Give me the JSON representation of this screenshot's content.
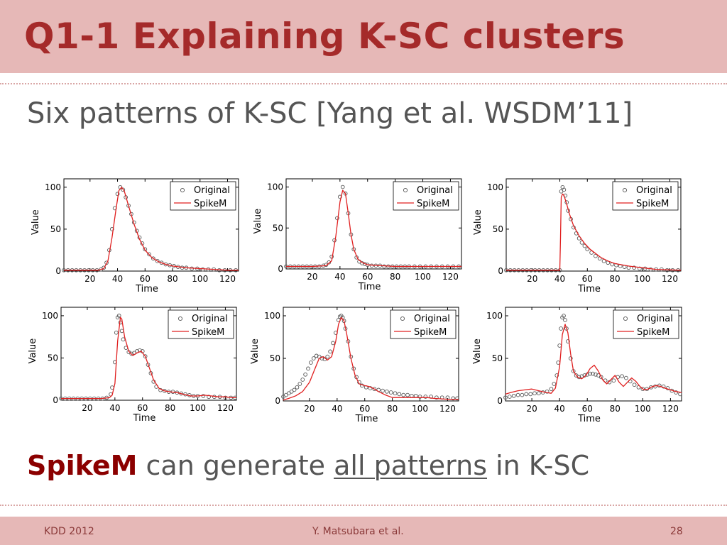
{
  "slide": {
    "title": "Q1-1 Explaining K-SC clusters",
    "subtitle": "Six patterns of K-SC [Yang et al. WSDM’11]",
    "bottom": {
      "highlight": "SpikeM",
      "middle": " can generate ",
      "underlined": "all patterns",
      "end": " in K-SC"
    },
    "footer": {
      "left": "KDD 2012",
      "center": "Y. Matsubara et al.",
      "right": "28"
    },
    "colors": {
      "title_bar": "#e6b8b7",
      "title_text": "#a52a2a",
      "highlight": "#8b0000",
      "model_line": "#e02020",
      "markers": "#555555"
    }
  },
  "chart_data": [
    {
      "type": "scatter",
      "xlabel": "Time",
      "ylabel": "Value",
      "xlim": [
        1,
        128
      ],
      "ylim": [
        0,
        110
      ],
      "xticks": [
        20,
        40,
        60,
        80,
        100,
        120
      ],
      "yticks": [
        0,
        50,
        100
      ],
      "legend": [
        "Original",
        "SpikeM"
      ],
      "legend_position": "top-right",
      "series": [
        {
          "name": "Original",
          "marker": "circle",
          "x": [
            1,
            4,
            7,
            10,
            13,
            16,
            19,
            22,
            25,
            28,
            30,
            32,
            34,
            36,
            38,
            40,
            42,
            44,
            46,
            48,
            50,
            52,
            54,
            56,
            58,
            60,
            63,
            66,
            69,
            72,
            75,
            78,
            81,
            84,
            87,
            90,
            94,
            98,
            102,
            106,
            110,
            114,
            118,
            122,
            126
          ],
          "y": [
            1,
            1,
            1,
            1,
            1,
            1,
            1,
            1,
            1,
            2,
            4,
            10,
            25,
            50,
            75,
            92,
            100,
            97,
            88,
            78,
            68,
            58,
            48,
            40,
            33,
            26,
            20,
            15,
            12,
            10,
            8,
            7,
            6,
            5,
            4,
            4,
            3,
            3,
            2,
            2,
            2,
            1,
            1,
            1,
            1
          ]
        },
        {
          "name": "SpikeM",
          "marker": "line",
          "x": [
            1,
            10,
            20,
            26,
            30,
            33,
            36,
            39,
            41,
            43,
            45,
            48,
            52,
            56,
            60,
            65,
            70,
            75,
            80,
            90,
            100,
            110,
            120,
            128
          ],
          "y": [
            1,
            1,
            1,
            1,
            3,
            12,
            40,
            75,
            96,
            100,
            95,
            78,
            56,
            38,
            25,
            16,
            11,
            8,
            6,
            4,
            3,
            2,
            1,
            1
          ]
        }
      ]
    },
    {
      "type": "scatter",
      "xlabel": "Time",
      "ylabel": "Value",
      "xlim": [
        1,
        128
      ],
      "ylim": [
        0,
        110
      ],
      "xticks": [
        20,
        40,
        60,
        80,
        100,
        120
      ],
      "yticks": [
        0,
        50,
        100
      ],
      "legend": [
        "Original",
        "SpikeM"
      ],
      "legend_position": "top-right",
      "series": [
        {
          "name": "Original",
          "marker": "circle",
          "x": [
            1,
            4,
            7,
            10,
            13,
            16,
            19,
            22,
            25,
            28,
            30,
            32,
            34,
            36,
            38,
            40,
            42,
            44,
            46,
            48,
            50,
            52,
            54,
            56,
            58,
            60,
            63,
            66,
            69,
            72,
            75,
            78,
            81,
            84,
            87,
            90,
            94,
            98,
            102,
            106,
            110,
            114,
            118,
            122,
            126
          ],
          "y": [
            3,
            3,
            3,
            3,
            3,
            3,
            3,
            3,
            3,
            4,
            5,
            8,
            15,
            35,
            62,
            88,
            100,
            92,
            68,
            42,
            24,
            14,
            9,
            7,
            6,
            5,
            4,
            4,
            4,
            3,
            3,
            3,
            3,
            3,
            3,
            3,
            3,
            3,
            3,
            3,
            3,
            3,
            3,
            3,
            3
          ]
        },
        {
          "name": "SpikeM",
          "marker": "line",
          "x": [
            1,
            10,
            20,
            30,
            34,
            37,
            40,
            42,
            44,
            46,
            48,
            50,
            53,
            56,
            60,
            70,
            80,
            100,
            128
          ],
          "y": [
            3,
            3,
            3,
            4,
            10,
            40,
            82,
            96,
            92,
            68,
            42,
            24,
            12,
            8,
            5,
            4,
            3,
            3,
            3
          ]
        }
      ]
    },
    {
      "type": "scatter",
      "xlabel": "Time",
      "ylabel": "Value",
      "xlim": [
        1,
        128
      ],
      "ylim": [
        0,
        110
      ],
      "xticks": [
        20,
        40,
        60,
        80,
        100,
        120
      ],
      "yticks": [
        0,
        50,
        100
      ],
      "legend": [
        "Original",
        "SpikeM"
      ],
      "legend_position": "top-right",
      "series": [
        {
          "name": "Original",
          "marker": "circle",
          "x": [
            1,
            4,
            7,
            10,
            13,
            16,
            19,
            22,
            25,
            28,
            31,
            34,
            37,
            40,
            41,
            42,
            43,
            44,
            45,
            46,
            48,
            50,
            52,
            54,
            56,
            58,
            60,
            63,
            66,
            69,
            72,
            75,
            78,
            81,
            84,
            87,
            90,
            94,
            98,
            102,
            106,
            110,
            114,
            118,
            122,
            126
          ],
          "y": [
            1,
            1,
            1,
            1,
            1,
            1,
            1,
            1,
            1,
            1,
            1,
            1,
            1,
            1,
            95,
            100,
            97,
            90,
            82,
            72,
            62,
            52,
            45,
            39,
            34,
            30,
            26,
            22,
            18,
            15,
            12,
            10,
            8,
            7,
            6,
            5,
            4,
            4,
            3,
            3,
            2,
            2,
            2,
            1,
            1,
            1
          ]
        },
        {
          "name": "SpikeM",
          "marker": "line",
          "x": [
            1,
            20,
            40,
            40.5,
            41,
            42,
            43,
            45,
            47,
            50,
            54,
            58,
            62,
            66,
            70,
            75,
            80,
            90,
            100,
            110,
            128
          ],
          "y": [
            1,
            1,
            1,
            40,
            88,
            92,
            90,
            80,
            68,
            54,
            42,
            33,
            26,
            21,
            16,
            12,
            9,
            6,
            4,
            2,
            1
          ]
        }
      ]
    },
    {
      "type": "scatter",
      "xlabel": "Time",
      "ylabel": "Value",
      "xlim": [
        1,
        128
      ],
      "ylim": [
        0,
        110
      ],
      "xticks": [
        20,
        40,
        60,
        80,
        100,
        120
      ],
      "yticks": [
        0,
        50,
        100
      ],
      "legend": [
        "Original",
        "SpikeM"
      ],
      "legend_position": "top-right",
      "series": [
        {
          "name": "Original",
          "marker": "circle",
          "x": [
            1,
            4,
            7,
            10,
            13,
            16,
            19,
            22,
            25,
            28,
            31,
            34,
            37,
            38,
            40,
            41,
            42,
            43,
            44,
            45,
            46,
            48,
            50,
            52,
            54,
            56,
            58,
            60,
            62,
            64,
            66,
            68,
            70,
            73,
            76,
            79,
            82,
            85,
            88,
            91,
            94,
            97,
            100,
            104,
            108,
            112,
            116,
            120,
            124,
            127
          ],
          "y": [
            2,
            2,
            2,
            2,
            2,
            2,
            2,
            2,
            2,
            2,
            2,
            3,
            7,
            15,
            45,
            80,
            98,
            100,
            92,
            82,
            72,
            62,
            57,
            55,
            56,
            58,
            59,
            58,
            52,
            42,
            32,
            22,
            16,
            12,
            11,
            10,
            10,
            9,
            8,
            7,
            6,
            5,
            5,
            5,
            4,
            4,
            4,
            3,
            3,
            3
          ]
        },
        {
          "name": "SpikeM",
          "marker": "line",
          "x": [
            1,
            20,
            30,
            36,
            38,
            40,
            42,
            44,
            45,
            47,
            50,
            53,
            56,
            59,
            62,
            65,
            68,
            72,
            76,
            80,
            85,
            90,
            95,
            100,
            105,
            110,
            115,
            120,
            125,
            128
          ],
          "y": [
            2,
            2,
            2,
            3,
            6,
            20,
            70,
            98,
            96,
            75,
            58,
            53,
            56,
            58,
            52,
            38,
            24,
            14,
            11,
            10,
            9,
            7,
            5,
            5,
            6,
            5,
            4,
            4,
            3,
            3
          ]
        }
      ]
    },
    {
      "type": "scatter",
      "xlabel": "Time",
      "ylabel": "Value",
      "xlim": [
        1,
        128
      ],
      "ylim": [
        0,
        110
      ],
      "xticks": [
        20,
        40,
        60,
        80,
        100,
        120
      ],
      "yticks": [
        0,
        50,
        100
      ],
      "legend": [
        "Original",
        "SpikeM"
      ],
      "legend_position": "top-right",
      "series": [
        {
          "name": "Original",
          "marker": "circle",
          "x": [
            1,
            3,
            5,
            7,
            9,
            11,
            13,
            15,
            17,
            19,
            21,
            23,
            25,
            27,
            29,
            31,
            33,
            35,
            37,
            39,
            41,
            42,
            43,
            44,
            45,
            46,
            48,
            50,
            52,
            54,
            56,
            58,
            61,
            64,
            67,
            70,
            73,
            76,
            79,
            82,
            85,
            88,
            91,
            94,
            97,
            100,
            104,
            108,
            112,
            116,
            120,
            124,
            127
          ],
          "y": [
            5,
            7,
            9,
            11,
            13,
            16,
            20,
            25,
            31,
            38,
            45,
            50,
            53,
            52,
            50,
            49,
            52,
            58,
            68,
            80,
            95,
            99,
            100,
            98,
            94,
            85,
            70,
            52,
            38,
            28,
            22,
            18,
            16,
            15,
            14,
            13,
            12,
            11,
            10,
            9,
            8,
            7,
            7,
            6,
            6,
            5,
            5,
            5,
            4,
            4,
            4,
            3,
            3
          ]
        },
        {
          "name": "SpikeM",
          "marker": "line",
          "x": [
            1,
            5,
            10,
            15,
            20,
            24,
            27,
            30,
            33,
            36,
            39,
            41,
            43,
            45,
            47,
            50,
            53,
            56,
            60,
            63,
            66,
            70,
            75,
            80,
            85,
            90,
            95,
            100,
            105,
            110,
            120,
            128
          ],
          "y": [
            1,
            3,
            6,
            11,
            22,
            38,
            50,
            52,
            48,
            52,
            70,
            90,
            98,
            94,
            78,
            50,
            30,
            20,
            18,
            17,
            15,
            11,
            7,
            4,
            4,
            4,
            4,
            4,
            4,
            3,
            2,
            2
          ]
        }
      ]
    },
    {
      "type": "scatter",
      "xlabel": "Time",
      "ylabel": "Value",
      "xlim": [
        1,
        128
      ],
      "ylim": [
        0,
        110
      ],
      "xticks": [
        20,
        40,
        60,
        80,
        100,
        120
      ],
      "yticks": [
        0,
        50,
        100
      ],
      "legend": [
        "Original",
        "SpikeM"
      ],
      "legend_position": "top-right",
      "series": [
        {
          "name": "Original",
          "marker": "circle",
          "x": [
            1,
            4,
            7,
            10,
            13,
            16,
            19,
            22,
            25,
            28,
            31,
            34,
            36,
            38,
            39,
            40,
            41,
            42,
            43,
            44,
            45,
            46,
            48,
            50,
            52,
            54,
            56,
            58,
            60,
            62,
            64,
            66,
            68,
            70,
            73,
            76,
            79,
            82,
            85,
            88,
            91,
            94,
            97,
            100,
            103,
            106,
            109,
            112,
            115,
            118,
            121,
            124,
            127
          ],
          "y": [
            4,
            5,
            6,
            7,
            7,
            8,
            8,
            9,
            9,
            10,
            11,
            14,
            20,
            30,
            45,
            65,
            85,
            98,
            100,
            95,
            85,
            70,
            50,
            35,
            30,
            28,
            29,
            30,
            31,
            32,
            32,
            31,
            30,
            28,
            24,
            22,
            24,
            28,
            29,
            27,
            23,
            19,
            16,
            14,
            14,
            16,
            17,
            18,
            17,
            15,
            12,
            10,
            8
          ]
        },
        {
          "name": "SpikeM",
          "marker": "line",
          "x": [
            1,
            5,
            10,
            15,
            20,
            25,
            30,
            34,
            37,
            40,
            42,
            44,
            46,
            48,
            50,
            53,
            56,
            59,
            62,
            65,
            68,
            71,
            74,
            77,
            80,
            83,
            86,
            89,
            92,
            95,
            98,
            101,
            104,
            107,
            110,
            113,
            116,
            120,
            124,
            128
          ],
          "y": [
            8,
            10,
            12,
            13,
            14,
            12,
            10,
            9,
            15,
            40,
            78,
            90,
            80,
            55,
            35,
            28,
            26,
            30,
            38,
            42,
            35,
            25,
            20,
            25,
            30,
            22,
            17,
            22,
            27,
            23,
            17,
            13,
            14,
            17,
            18,
            17,
            15,
            13,
            11,
            10
          ]
        }
      ]
    }
  ]
}
